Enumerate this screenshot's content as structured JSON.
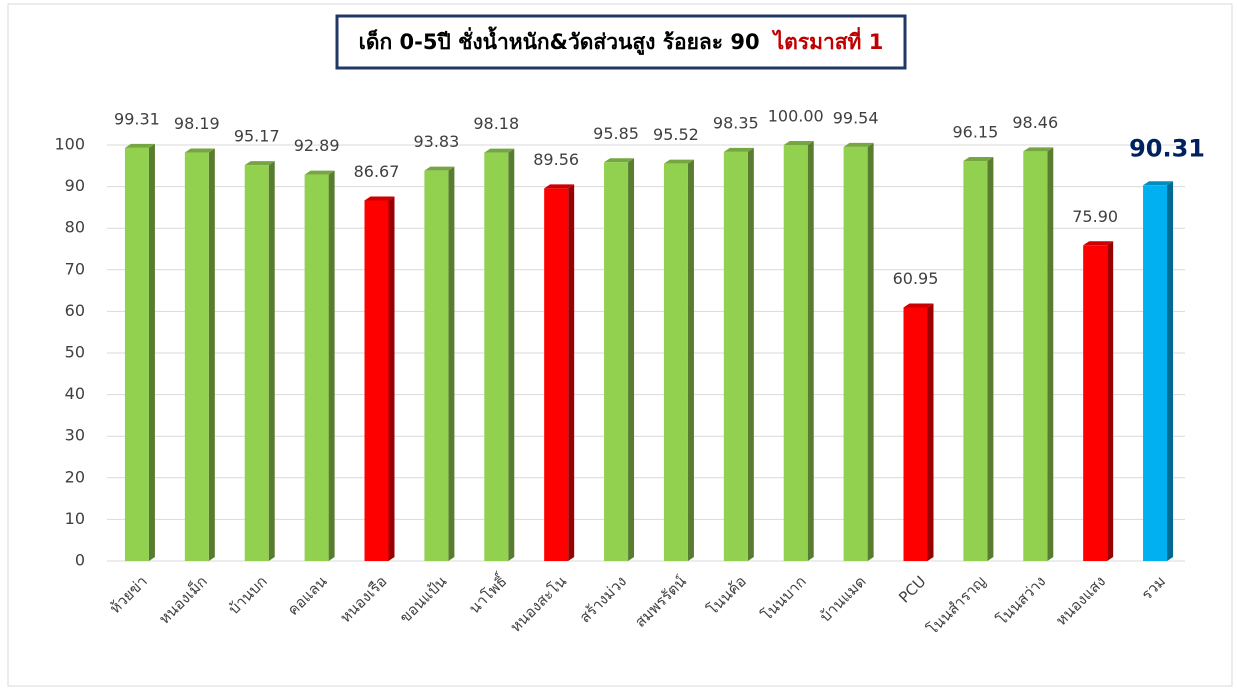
{
  "chart_data": {
    "type": "bar",
    "title": "เด็ก 0-5ปี ชั่งน้ำหนัก&วัดส่วนสูง ร้อยละ 90",
    "title_suffix": "ไตรมาสที่ 1",
    "categories": [
      "ห้วยข่า",
      "หนองเม็ก",
      "บ้านบก",
      "คอแลน",
      "หนองเรือ",
      "ขอนแป้น",
      "นาโพธิ์",
      "หนองสะโน",
      "สร้างม่วง",
      "สมพรรัตน์",
      "โนนค้อ",
      "โนนบาก",
      "บ้านแมด",
      "PCU",
      "โนนสำราญ",
      "โนนสว่าง",
      "หนองแสง",
      "รวม"
    ],
    "values": [
      99.31,
      98.19,
      95.17,
      92.89,
      86.67,
      93.83,
      98.18,
      89.56,
      95.85,
      95.52,
      98.35,
      100.0,
      99.54,
      60.95,
      96.15,
      98.46,
      75.9,
      90.31
    ],
    "value_labels": [
      "99.31",
      "98.19",
      "95.17",
      "92.89",
      "86.67",
      "93.83",
      "98.18",
      "89.56",
      "95.85",
      "95.52",
      "98.35",
      "100.00",
      "99.54",
      "60.95",
      "96.15",
      "98.46",
      "75.90",
      "90.31"
    ],
    "colors": [
      "#92d050",
      "#92d050",
      "#92d050",
      "#92d050",
      "#ff0000",
      "#92d050",
      "#92d050",
      "#ff0000",
      "#92d050",
      "#92d050",
      "#92d050",
      "#92d050",
      "#92d050",
      "#ff0000",
      "#92d050",
      "#92d050",
      "#ff0000",
      "#00b0f0"
    ],
    "ylim": [
      0,
      100
    ],
    "yticks": [
      0,
      10,
      20,
      30,
      40,
      50,
      60,
      70,
      80,
      90,
      100
    ],
    "grid": true
  }
}
